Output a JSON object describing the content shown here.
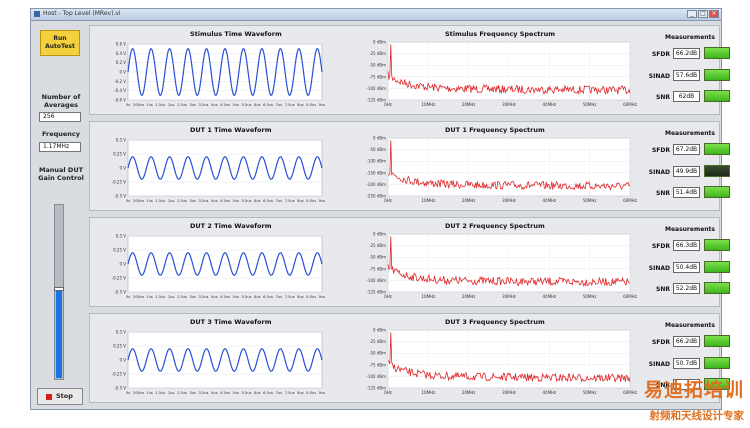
{
  "window": {
    "title": "Host - Top Level (MRev).vi"
  },
  "left": {
    "run_label": "Run AutoTest",
    "averages_label": "Number of Averages",
    "averages_value": "256",
    "frequency_label": "Frequency",
    "frequency_value": "1.17MHz",
    "gain_label": "Manual DUT Gain Control",
    "gain_level": 0.52,
    "stop_label": "Stop"
  },
  "rows": [
    {
      "time_title": "Stimulus Time Waveform",
      "spec_title": "Stimulus Frequency Spectrum",
      "time_yticks": [
        "0.6 V",
        "0.4 V",
        "0.2 V",
        "0 V",
        "-0.2 V",
        "-0.4 V",
        "-0.6 V"
      ],
      "spec_yticks": [
        "0 dBm",
        "-25 dBm",
        "-50 dBm",
        "-75 dBm",
        "-100 dBm",
        "-125 dBm"
      ],
      "measurements_title": "Measurements",
      "sfdr_label": "SFDR",
      "sfdr_value": "66.2dB",
      "sinad_label": "SINAD",
      "sinad_value": "57.6dB",
      "snr_label": "SNR",
      "snr_value": "62dB",
      "sinad_led_dark": false
    },
    {
      "time_title": "DUT 1 Time Waveform",
      "spec_title": "DUT 1 Frequency Spectrum",
      "time_yticks": [
        "0.5 V",
        "0.25 V",
        "0 V",
        "-0.25 V",
        "-0.5 V"
      ],
      "spec_yticks": [
        "0 dBm",
        "-50 dBm",
        "-100 dBm",
        "-150 dBm",
        "-200 dBm",
        "-250 dBm"
      ],
      "measurements_title": "Measurements",
      "sfdr_label": "SFDR",
      "sfdr_value": "67.2dB",
      "sinad_label": "SINAD",
      "sinad_value": "49.9dB",
      "snr_label": "SNR",
      "snr_value": "51.4dB",
      "sinad_led_dark": true
    },
    {
      "time_title": "DUT 2 Time Waveform",
      "spec_title": "DUT 2 Frequency Spectrum",
      "time_yticks": [
        "0.5 V",
        "0.25 V",
        "0 V",
        "-0.25 V",
        "-0.5 V"
      ],
      "spec_yticks": [
        "0 dBm",
        "-25 dBm",
        "-50 dBm",
        "-75 dBm",
        "-100 dBm",
        "-125 dBm"
      ],
      "measurements_title": "Measurements",
      "sfdr_label": "SFDR",
      "sfdr_value": "66.3dB",
      "sinad_label": "SINAD",
      "sinad_value": "50.4dB",
      "snr_label": "SNR",
      "snr_value": "52.2dB",
      "sinad_led_dark": false
    },
    {
      "time_title": "DUT 3 Time Waveform",
      "spec_title": "DUT 3 Frequency Spectrum",
      "time_yticks": [
        "0.5 V",
        "0.25 V",
        "0 V",
        "-0.25 V",
        "-0.5 V"
      ],
      "spec_yticks": [
        "0 dBm",
        "-25 dBm",
        "-50 dBm",
        "-75 dBm",
        "-100 dBm",
        "-125 dBm"
      ],
      "measurements_title": "Measurements",
      "sfdr_label": "SFDR",
      "sfdr_value": "66.2dB",
      "sinad_label": "SINAD",
      "sinad_value": "50.7dB",
      "snr_label": "SNR",
      "snr_value": "",
      "sinad_led_dark": false
    }
  ],
  "time_xticks": [
    "0s",
    "500ns",
    "1us",
    "1.5us",
    "2us",
    "2.5us",
    "3us",
    "3.5us",
    "4us",
    "4.5us",
    "5us",
    "5.5us",
    "6us",
    "6.5us",
    "7us",
    "7.5us",
    "8us",
    "8.5us",
    "9us"
  ],
  "spec_xticks": [
    "0Hz",
    "10MHz",
    "20MHz",
    "30MHz",
    "40MHz",
    "50MHz",
    "60MHz"
  ],
  "waveform": {
    "cycles": 10.5,
    "stimulus_amplitude": 0.5,
    "dut_amplitude": 0.2
  },
  "colors": {
    "time_trace": "#2a4fd6",
    "spectrum_trace": "#e0282b",
    "led_on": "#5ccf2e",
    "led_off": "#26331d"
  },
  "watermark": {
    "line1": "易迪拓培训",
    "line2": "射频和天线设计专家"
  }
}
